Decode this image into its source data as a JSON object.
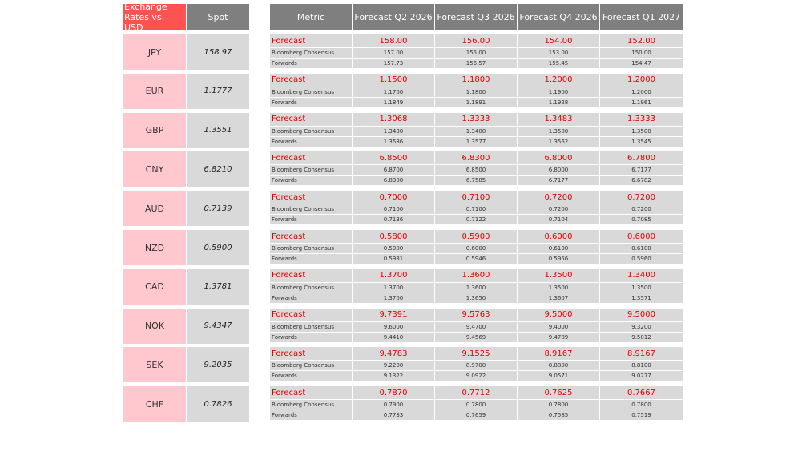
{
  "left_header": [
    "Exchange Rates vs. USD",
    "Spot"
  ],
  "right_header": [
    "Metric",
    "Forecast Q2 2026",
    "Forecast Q3 2026",
    "Forecast Q4 2026",
    "Forecast Q1 2027"
  ],
  "currencies": [
    {
      "code": "JPY",
      "spot": "158.97",
      "rows": [
        [
          "Forecast",
          "158.00",
          "156.00",
          "154.00",
          "152.00"
        ],
        [
          "Bloomberg Consensus",
          "157.00",
          "155.00",
          "153.00",
          "150.00"
        ],
        [
          "Forwards",
          "157.73",
          "156.57",
          "155.45",
          "154.47"
        ]
      ]
    },
    {
      "code": "EUR",
      "spot": "1.1777",
      "rows": [
        [
          "Forecast",
          "1.1500",
          "1.1800",
          "1.2000",
          "1.2000"
        ],
        [
          "Bloomberg Consensus",
          "1.1700",
          "1.1800",
          "1.1900",
          "1.2000"
        ],
        [
          "Forwards",
          "1.1849",
          "1.1891",
          "1.1928",
          "1.1961"
        ]
      ]
    },
    {
      "code": "GBP",
      "spot": "1.3551",
      "rows": [
        [
          "Forecast",
          "1.3068",
          "1.3333",
          "1.3483",
          "1.3333"
        ],
        [
          "Bloomberg Consensus",
          "1.3400",
          "1.3400",
          "1.3500",
          "1.3500"
        ],
        [
          "Forwards",
          "1.3586",
          "1.3577",
          "1.3562",
          "1.3545"
        ]
      ]
    },
    {
      "code": "CNY",
      "spot": "6.8210",
      "rows": [
        [
          "Forecast",
          "6.8500",
          "6.8300",
          "6.8000",
          "6.7800"
        ],
        [
          "Bloomberg Consensus",
          "6.8700",
          "6.8500",
          "6.8000",
          "6.7177"
        ],
        [
          "Forwards",
          "6.8008",
          "6.7585",
          "6.7177",
          "6.6782"
        ]
      ]
    },
    {
      "code": "AUD",
      "spot": "0.7139",
      "rows": [
        [
          "Forecast",
          "0.7000",
          "0.7100",
          "0.7200",
          "0.7200"
        ],
        [
          "Bloomberg Consensus",
          "0.7100",
          "0.7100",
          "0.7200",
          "0.7200"
        ],
        [
          "Forwards",
          "0.7136",
          "0.7122",
          "0.7104",
          "0.7085"
        ]
      ]
    },
    {
      "code": "NZD",
      "spot": "0.5900",
      "rows": [
        [
          "Forecast",
          "0.5800",
          "0.5900",
          "0.6000",
          "0.6000"
        ],
        [
          "Bloomberg Consensus",
          "0.5900",
          "0.6000",
          "0.6100",
          "0.6100"
        ],
        [
          "Forwards",
          "0.5931",
          "0.5946",
          "0.5956",
          "0.5960"
        ]
      ]
    },
    {
      "code": "CAD",
      "spot": "1.3781",
      "rows": [
        [
          "Forecast",
          "1.3700",
          "1.3600",
          "1.3500",
          "1.3400"
        ],
        [
          "Bloomberg Consensus",
          "1.3700",
          "1.3600",
          "1.3500",
          "1.3500"
        ],
        [
          "Forwards",
          "1.3700",
          "1.3650",
          "1.3607",
          "1.3571"
        ]
      ]
    },
    {
      "code": "NOK",
      "spot": "9.4347",
      "rows": [
        [
          "Forecast",
          "9.7391",
          "9.5763",
          "9.5000",
          "9.5000"
        ],
        [
          "Bloomberg Consensus",
          "9.6000",
          "9.4700",
          "9.4000",
          "9.3200"
        ],
        [
          "Forwards",
          "9.4410",
          "9.4569",
          "9.4789",
          "9.5012"
        ]
      ]
    },
    {
      "code": "SEK",
      "spot": "9.2035",
      "rows": [
        [
          "Forecast",
          "9.4783",
          "9.1525",
          "8.9167",
          "8.9167"
        ],
        [
          "Bloomberg Consensus",
          "9.2200",
          "8.9700",
          "8.8800",
          "8.8100"
        ],
        [
          "Forwards",
          "9.1322",
          "9.0922",
          "9.0571",
          "9.0277"
        ]
      ]
    },
    {
      "code": "CHF",
      "spot": "0.7826",
      "rows": [
        [
          "Forecast",
          "0.7870",
          "0.7712",
          "0.7625",
          "0.7667"
        ],
        [
          "Bloomberg Consensus",
          "0.7900",
          "0.7800",
          "0.7800",
          "0.7800"
        ],
        [
          "Forwards",
          "0.7733",
          "0.7659",
          "0.7585",
          "0.7519"
        ]
      ]
    }
  ]
}
